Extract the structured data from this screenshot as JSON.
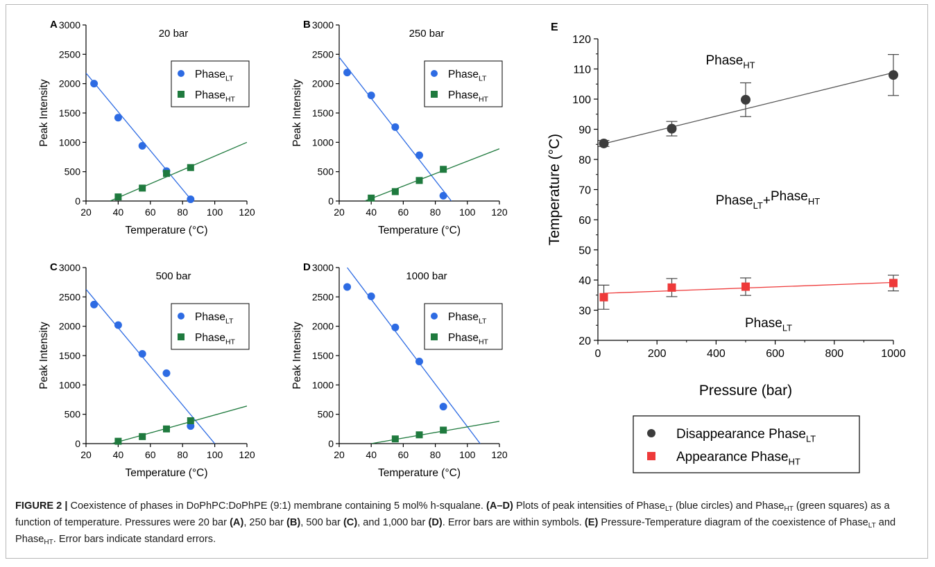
{
  "colors": {
    "lt": "#2d6be3",
    "ht": "#1f7a3e",
    "dis": "#3c3c3c",
    "app": "#ee3a3a"
  },
  "small_panels": [
    {
      "letter": "A",
      "pressure": "20 bar",
      "ylabel": "Peak Intensity",
      "xlabel": "Temperature (°C)"
    },
    {
      "letter": "B",
      "pressure": "250 bar",
      "ylabel": "Peak Intensity",
      "xlabel": "Temperature (°C)"
    },
    {
      "letter": "C",
      "pressure": "500 bar",
      "ylabel": "Peak Intensity",
      "xlabel": "Temperature (°C)"
    },
    {
      "letter": "D",
      "pressure": "1000 bar",
      "ylabel": "Peak Intensity",
      "xlabel": "Temperature (°C)"
    }
  ],
  "big_panel": {
    "letter": "E",
    "xlabel": "Pressure (bar)",
    "ylabel": "Temperature (°C)",
    "region_top": {
      "base": "Phase",
      "sub": "HT"
    },
    "region_mid": {
      "a": "Phase",
      "a_sub": "LT",
      "plus": "+",
      "b": "Phase",
      "b_sub": "HT"
    },
    "region_bottom": {
      "base": "Phase",
      "sub": "LT"
    },
    "legend": [
      {
        "base": "Disappearance Phase",
        "sub": "LT"
      },
      {
        "base": "Appearance Phase",
        "sub": "HT"
      }
    ]
  },
  "small_legend": [
    {
      "base": "Phase",
      "sub": "LT"
    },
    {
      "base": "Phase",
      "sub": "HT"
    }
  ],
  "chart_data": [
    {
      "type": "scatter",
      "panel": "A",
      "title": "20 bar",
      "xlabel": "Temperature (°C)",
      "ylabel": "Peak Intensity",
      "xlim": [
        20,
        120
      ],
      "ylim": [
        0,
        3000
      ],
      "xticks": [
        20,
        40,
        60,
        80,
        100,
        120
      ],
      "yticks": [
        0,
        500,
        1000,
        1500,
        2000,
        2500,
        3000
      ],
      "series": [
        {
          "name": "PhaseLT",
          "marker": "circle",
          "x": [
            25,
            40,
            55,
            70,
            85
          ],
          "y": [
            2000,
            1420,
            940,
            510,
            30
          ],
          "fit": [
            [
              20,
              2180
            ],
            [
              86,
              0
            ]
          ]
        },
        {
          "name": "PhaseHT",
          "marker": "square",
          "x": [
            40,
            55,
            70,
            85
          ],
          "y": [
            70,
            220,
            470,
            570
          ],
          "fit": [
            [
              35,
              0
            ],
            [
              120,
              1000
            ]
          ]
        }
      ]
    },
    {
      "type": "scatter",
      "panel": "B",
      "title": "250 bar",
      "xlabel": "Temperature (°C)",
      "ylabel": "Peak Intensity",
      "xlim": [
        20,
        120
      ],
      "ylim": [
        0,
        3000
      ],
      "xticks": [
        20,
        40,
        60,
        80,
        100,
        120
      ],
      "yticks": [
        0,
        500,
        1000,
        1500,
        2000,
        2500,
        3000
      ],
      "series": [
        {
          "name": "PhaseLT",
          "marker": "circle",
          "x": [
            25,
            40,
            55,
            70,
            85
          ],
          "y": [
            2190,
            1800,
            1260,
            780,
            90
          ],
          "fit": [
            [
              20,
              2450
            ],
            [
              90,
              0
            ]
          ]
        },
        {
          "name": "PhaseHT",
          "marker": "square",
          "x": [
            40,
            55,
            70,
            85
          ],
          "y": [
            50,
            160,
            350,
            540
          ],
          "fit": [
            [
              36,
              0
            ],
            [
              120,
              890
            ]
          ]
        }
      ]
    },
    {
      "type": "scatter",
      "panel": "C",
      "title": "500 bar",
      "xlabel": "Temperature (°C)",
      "ylabel": "Peak Intensity",
      "xlim": [
        20,
        120
      ],
      "ylim": [
        0,
        3000
      ],
      "xticks": [
        20,
        40,
        60,
        80,
        100,
        120
      ],
      "yticks": [
        0,
        500,
        1000,
        1500,
        2000,
        2500,
        3000
      ],
      "series": [
        {
          "name": "PhaseLT",
          "marker": "circle",
          "x": [
            25,
            40,
            55,
            70,
            85
          ],
          "y": [
            2370,
            2020,
            1530,
            1200,
            300
          ],
          "fit": [
            [
              20,
              2630
            ],
            [
              100,
              0
            ]
          ]
        },
        {
          "name": "PhaseHT",
          "marker": "square",
          "x": [
            40,
            55,
            70,
            85
          ],
          "y": [
            40,
            120,
            250,
            390
          ],
          "fit": [
            [
              36,
              0
            ],
            [
              120,
              640
            ]
          ]
        }
      ]
    },
    {
      "type": "scatter",
      "panel": "D",
      "title": "1000 bar",
      "xlabel": "Temperature (°C)",
      "ylabel": "Peak Intensity",
      "xlim": [
        20,
        120
      ],
      "ylim": [
        0,
        3000
      ],
      "xticks": [
        20,
        40,
        60,
        80,
        100,
        120
      ],
      "yticks": [
        0,
        500,
        1000,
        1500,
        2000,
        2500,
        3000
      ],
      "series": [
        {
          "name": "PhaseLT",
          "marker": "circle",
          "x": [
            25,
            40,
            55,
            70,
            85
          ],
          "y": [
            2670,
            2510,
            1980,
            1400,
            630
          ],
          "fit": [
            [
              25,
              3000
            ],
            [
              108,
              0
            ]
          ]
        },
        {
          "name": "PhaseHT",
          "marker": "square",
          "x": [
            55,
            70,
            85
          ],
          "y": [
            80,
            150,
            230
          ],
          "fit": [
            [
              40,
              0
            ],
            [
              120,
              380
            ]
          ]
        }
      ]
    },
    {
      "type": "scatter",
      "panel": "E",
      "xlabel": "Pressure (bar)",
      "ylabel": "Temperature (°C)",
      "xlim": [
        0,
        1000
      ],
      "ylim": [
        20,
        120
      ],
      "xticks": [
        0,
        200,
        400,
        600,
        800,
        1000
      ],
      "yticks": [
        20,
        30,
        40,
        50,
        60,
        70,
        80,
        90,
        100,
        110,
        120
      ],
      "legend_position": "below",
      "series": [
        {
          "name": "Disappearance PhaseLT",
          "marker": "circle",
          "x": [
            20,
            250,
            500,
            1000
          ],
          "y": [
            85.3,
            90.2,
            99.8,
            108.0
          ],
          "err": [
            1.0,
            2.4,
            5.6,
            6.8
          ],
          "fit": [
            [
              20,
              85.2
            ],
            [
              1000,
              108.8
            ]
          ]
        },
        {
          "name": "Appearance PhaseHT",
          "marker": "square",
          "x": [
            20,
            250,
            500,
            1000
          ],
          "y": [
            34.3,
            37.5,
            37.8,
            39.0
          ],
          "err": [
            4.0,
            3.0,
            2.9,
            2.6
          ],
          "fit": [
            [
              20,
              35.6
            ],
            [
              1000,
              39.2
            ]
          ]
        }
      ]
    }
  ],
  "caption": {
    "fig_label": "FIGURE 2 |",
    "p1": " Coexistence of phases in DoPhPC:DoPhPE (9:1) membrane containing 5 mol% h-squalane. ",
    "b1": "(A–D)",
    "p2": " Plots of peak intensities of Phase",
    "s1": "LT",
    "p3": " (blue circles) and Phase",
    "s2": "HT",
    "p4": " (green squares) as a function of temperature. Pressures were 20 bar ",
    "bA": "(A)",
    "p5": ", 250 bar ",
    "bB": "(B)",
    "p6": ", 500 bar ",
    "bC": "(C)",
    "p7": ", and 1,000 bar ",
    "bD": "(D)",
    "p8": ". Error bars are within symbols. ",
    "bE": "(E)",
    "p9": " Pressure-Temperature diagram of the coexistence of Phase",
    "s3": "LT",
    "p10": " and Phase",
    "s4": "HT",
    "p11": ". Error bars indicate standard errors."
  }
}
